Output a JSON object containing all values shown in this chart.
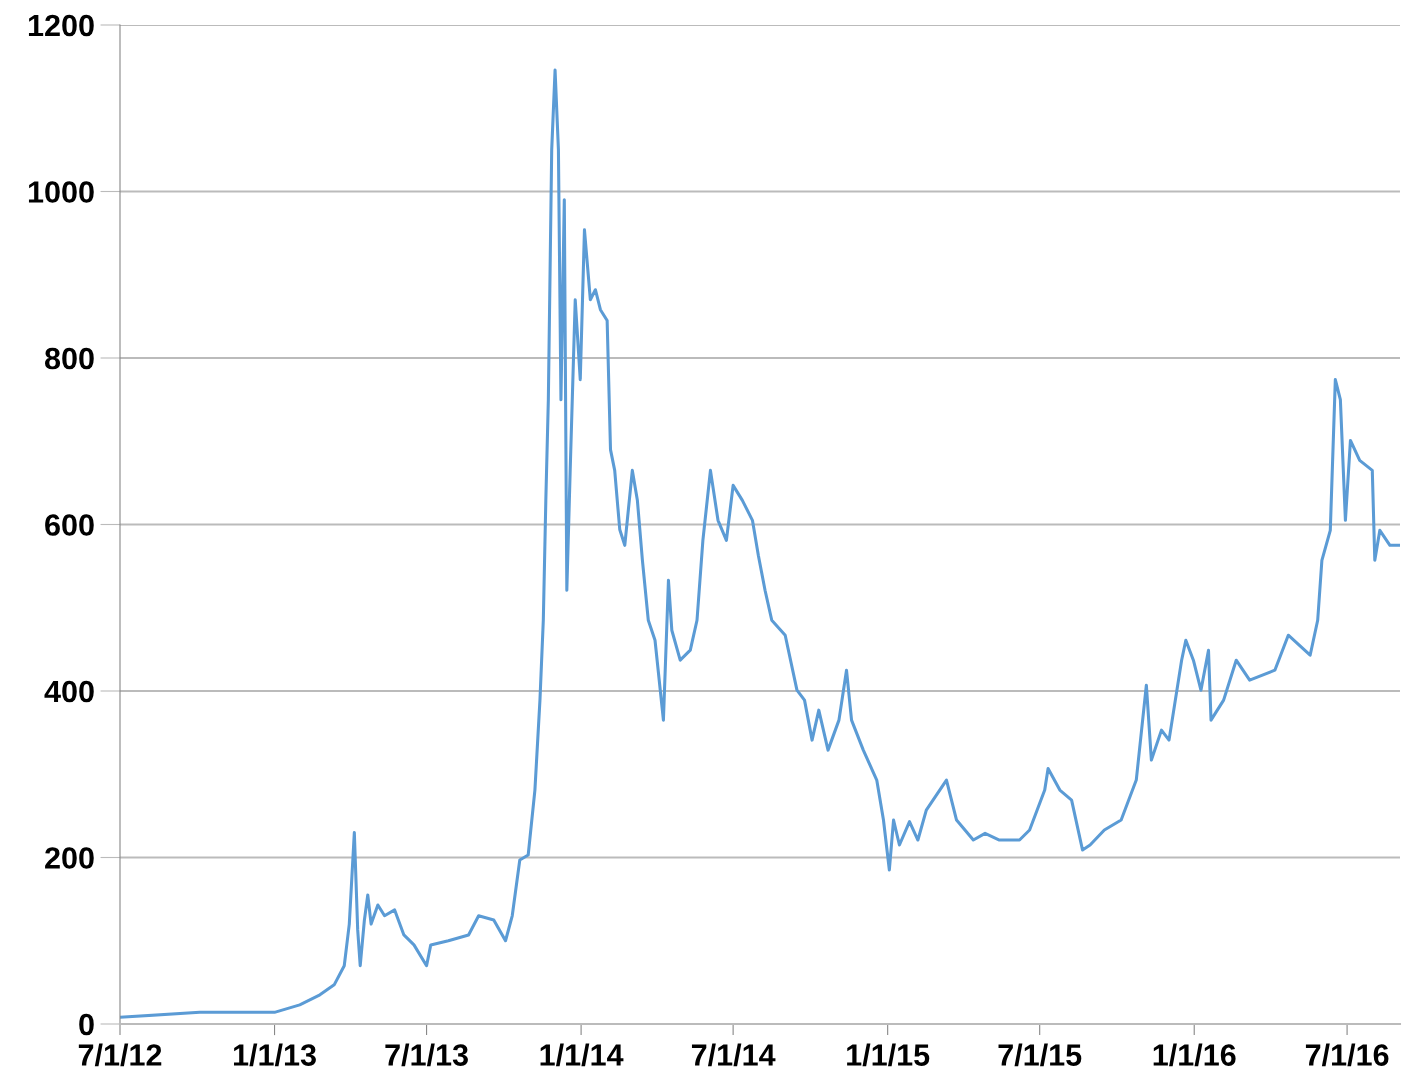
{
  "chart_data": {
    "type": "line",
    "color": "#5b9bd5",
    "grid": "y",
    "marker": "none",
    "line_style": "solid",
    "xlim": [
      "2012-07-01",
      "2016-09-02"
    ],
    "xticks": [
      {
        "value": "2012-07-01",
        "label": "7/1/12"
      },
      {
        "value": "2013-01-01",
        "label": "1/1/13"
      },
      {
        "value": "2013-07-01",
        "label": "7/1/13"
      },
      {
        "value": "2014-01-01",
        "label": "1/1/14"
      },
      {
        "value": "2014-07-01",
        "label": "7/1/14"
      },
      {
        "value": "2015-01-01",
        "label": "1/1/15"
      },
      {
        "value": "2015-07-01",
        "label": "7/1/15"
      },
      {
        "value": "2016-01-01",
        "label": "1/1/16"
      },
      {
        "value": "2016-07-01",
        "label": "7/1/16"
      }
    ],
    "ylim": [
      0,
      1200
    ],
    "yticks": [
      0,
      200,
      400,
      600,
      800,
      1000,
      1200
    ],
    "x": [
      "2012-07-01",
      "2012-10-04",
      "2013-01-01",
      "2013-01-31",
      "2013-02-24",
      "2013-03-13",
      "2013-03-25",
      "2013-03-31",
      "2013-04-06",
      "2013-04-10",
      "2013-04-13",
      "2013-04-18",
      "2013-04-22",
      "2013-04-26",
      "2013-05-04",
      "2013-05-12",
      "2013-05-24",
      "2013-06-04",
      "2013-06-16",
      "2013-07-01",
      "2013-07-06",
      "2013-07-27",
      "2013-08-20",
      "2013-09-01",
      "2013-09-19",
      "2013-10-03",
      "2013-10-11",
      "2013-10-20",
      "2013-10-30",
      "2013-11-07",
      "2013-11-13",
      "2013-11-17",
      "2013-11-20",
      "2013-11-23",
      "2013-11-27",
      "2013-12-01",
      "2013-12-05",
      "2013-12-08",
      "2013-12-12",
      "2013-12-15",
      "2013-12-19",
      "2013-12-25",
      "2013-12-31",
      "2014-01-05",
      "2014-01-12",
      "2014-01-18",
      "2014-01-24",
      "2014-02-01",
      "2014-02-05",
      "2014-02-10",
      "2014-02-16",
      "2014-02-22",
      "2014-03-03",
      "2014-03-09",
      "2014-03-15",
      "2014-03-22",
      "2014-03-30",
      "2014-04-09",
      "2014-04-15",
      "2014-04-19",
      "2014-04-29",
      "2014-05-11",
      "2014-05-19",
      "2014-05-26",
      "2014-06-04",
      "2014-06-13",
      "2014-06-23",
      "2014-07-01",
      "2014-07-12",
      "2014-07-24",
      "2014-07-31",
      "2014-08-08",
      "2014-08-16",
      "2014-09-01",
      "2014-09-15",
      "2014-09-24",
      "2014-10-03",
      "2014-10-11",
      "2014-10-22",
      "2014-11-04",
      "2014-11-13",
      "2014-11-19",
      "2014-12-03",
      "2014-12-19",
      "2014-12-27",
      "2015-01-03",
      "2015-01-08",
      "2015-01-15",
      "2015-01-27",
      "2015-02-06",
      "2015-02-16",
      "2015-03-12",
      "2015-03-24",
      "2015-04-13",
      "2015-04-27",
      "2015-05-14",
      "2015-06-07",
      "2015-06-19",
      "2015-07-07",
      "2015-07-11",
      "2015-07-25",
      "2015-08-08",
      "2015-08-21",
      "2015-08-30",
      "2015-09-16",
      "2015-10-06",
      "2015-10-24",
      "2015-11-05",
      "2015-11-11",
      "2015-11-23",
      "2015-12-02",
      "2015-12-17",
      "2015-12-22",
      "2015-12-31",
      "2016-01-09",
      "2016-01-18",
      "2016-01-21",
      "2016-02-05",
      "2016-02-20",
      "2016-03-07",
      "2016-04-06",
      "2016-04-22",
      "2016-05-18",
      "2016-05-27",
      "2016-06-01",
      "2016-06-11",
      "2016-06-17",
      "2016-06-23",
      "2016-06-29",
      "2016-07-05",
      "2016-07-16",
      "2016-07-31",
      "2016-08-03",
      "2016-08-09",
      "2016-08-21",
      "2016-09-02"
    ],
    "values": [
      8,
      14,
      14,
      23,
      35,
      47,
      70,
      120,
      230,
      113,
      70,
      125,
      155,
      120,
      143,
      130,
      137,
      107,
      95,
      70,
      95,
      100,
      107,
      130,
      125,
      100,
      130,
      197,
      203,
      281,
      389,
      485,
      629,
      750,
      1050,
      1146,
      1050,
      750,
      990,
      521,
      665,
      870,
      774,
      954,
      870,
      882,
      858,
      845,
      690,
      665,
      594,
      575,
      665,
      629,
      557,
      485,
      461,
      365,
      533,
      473,
      437,
      449,
      485,
      581,
      665,
      605,
      581,
      647,
      629,
      605,
      563,
      521,
      485,
      467,
      401,
      389,
      341,
      377,
      329,
      365,
      425,
      365,
      329,
      293,
      245,
      185,
      245,
      215,
      243,
      221,
      257,
      293,
      245,
      221,
      229,
      221,
      221,
      233,
      281,
      307,
      281,
      269,
      209,
      215,
      233,
      245,
      293,
      407,
      317,
      353,
      341,
      437,
      461,
      437,
      401,
      449,
      365,
      389,
      437,
      413,
      425,
      467,
      443,
      485,
      557,
      593,
      774,
      750,
      605,
      701,
      677,
      665,
      557,
      593,
      575,
      575
    ]
  }
}
